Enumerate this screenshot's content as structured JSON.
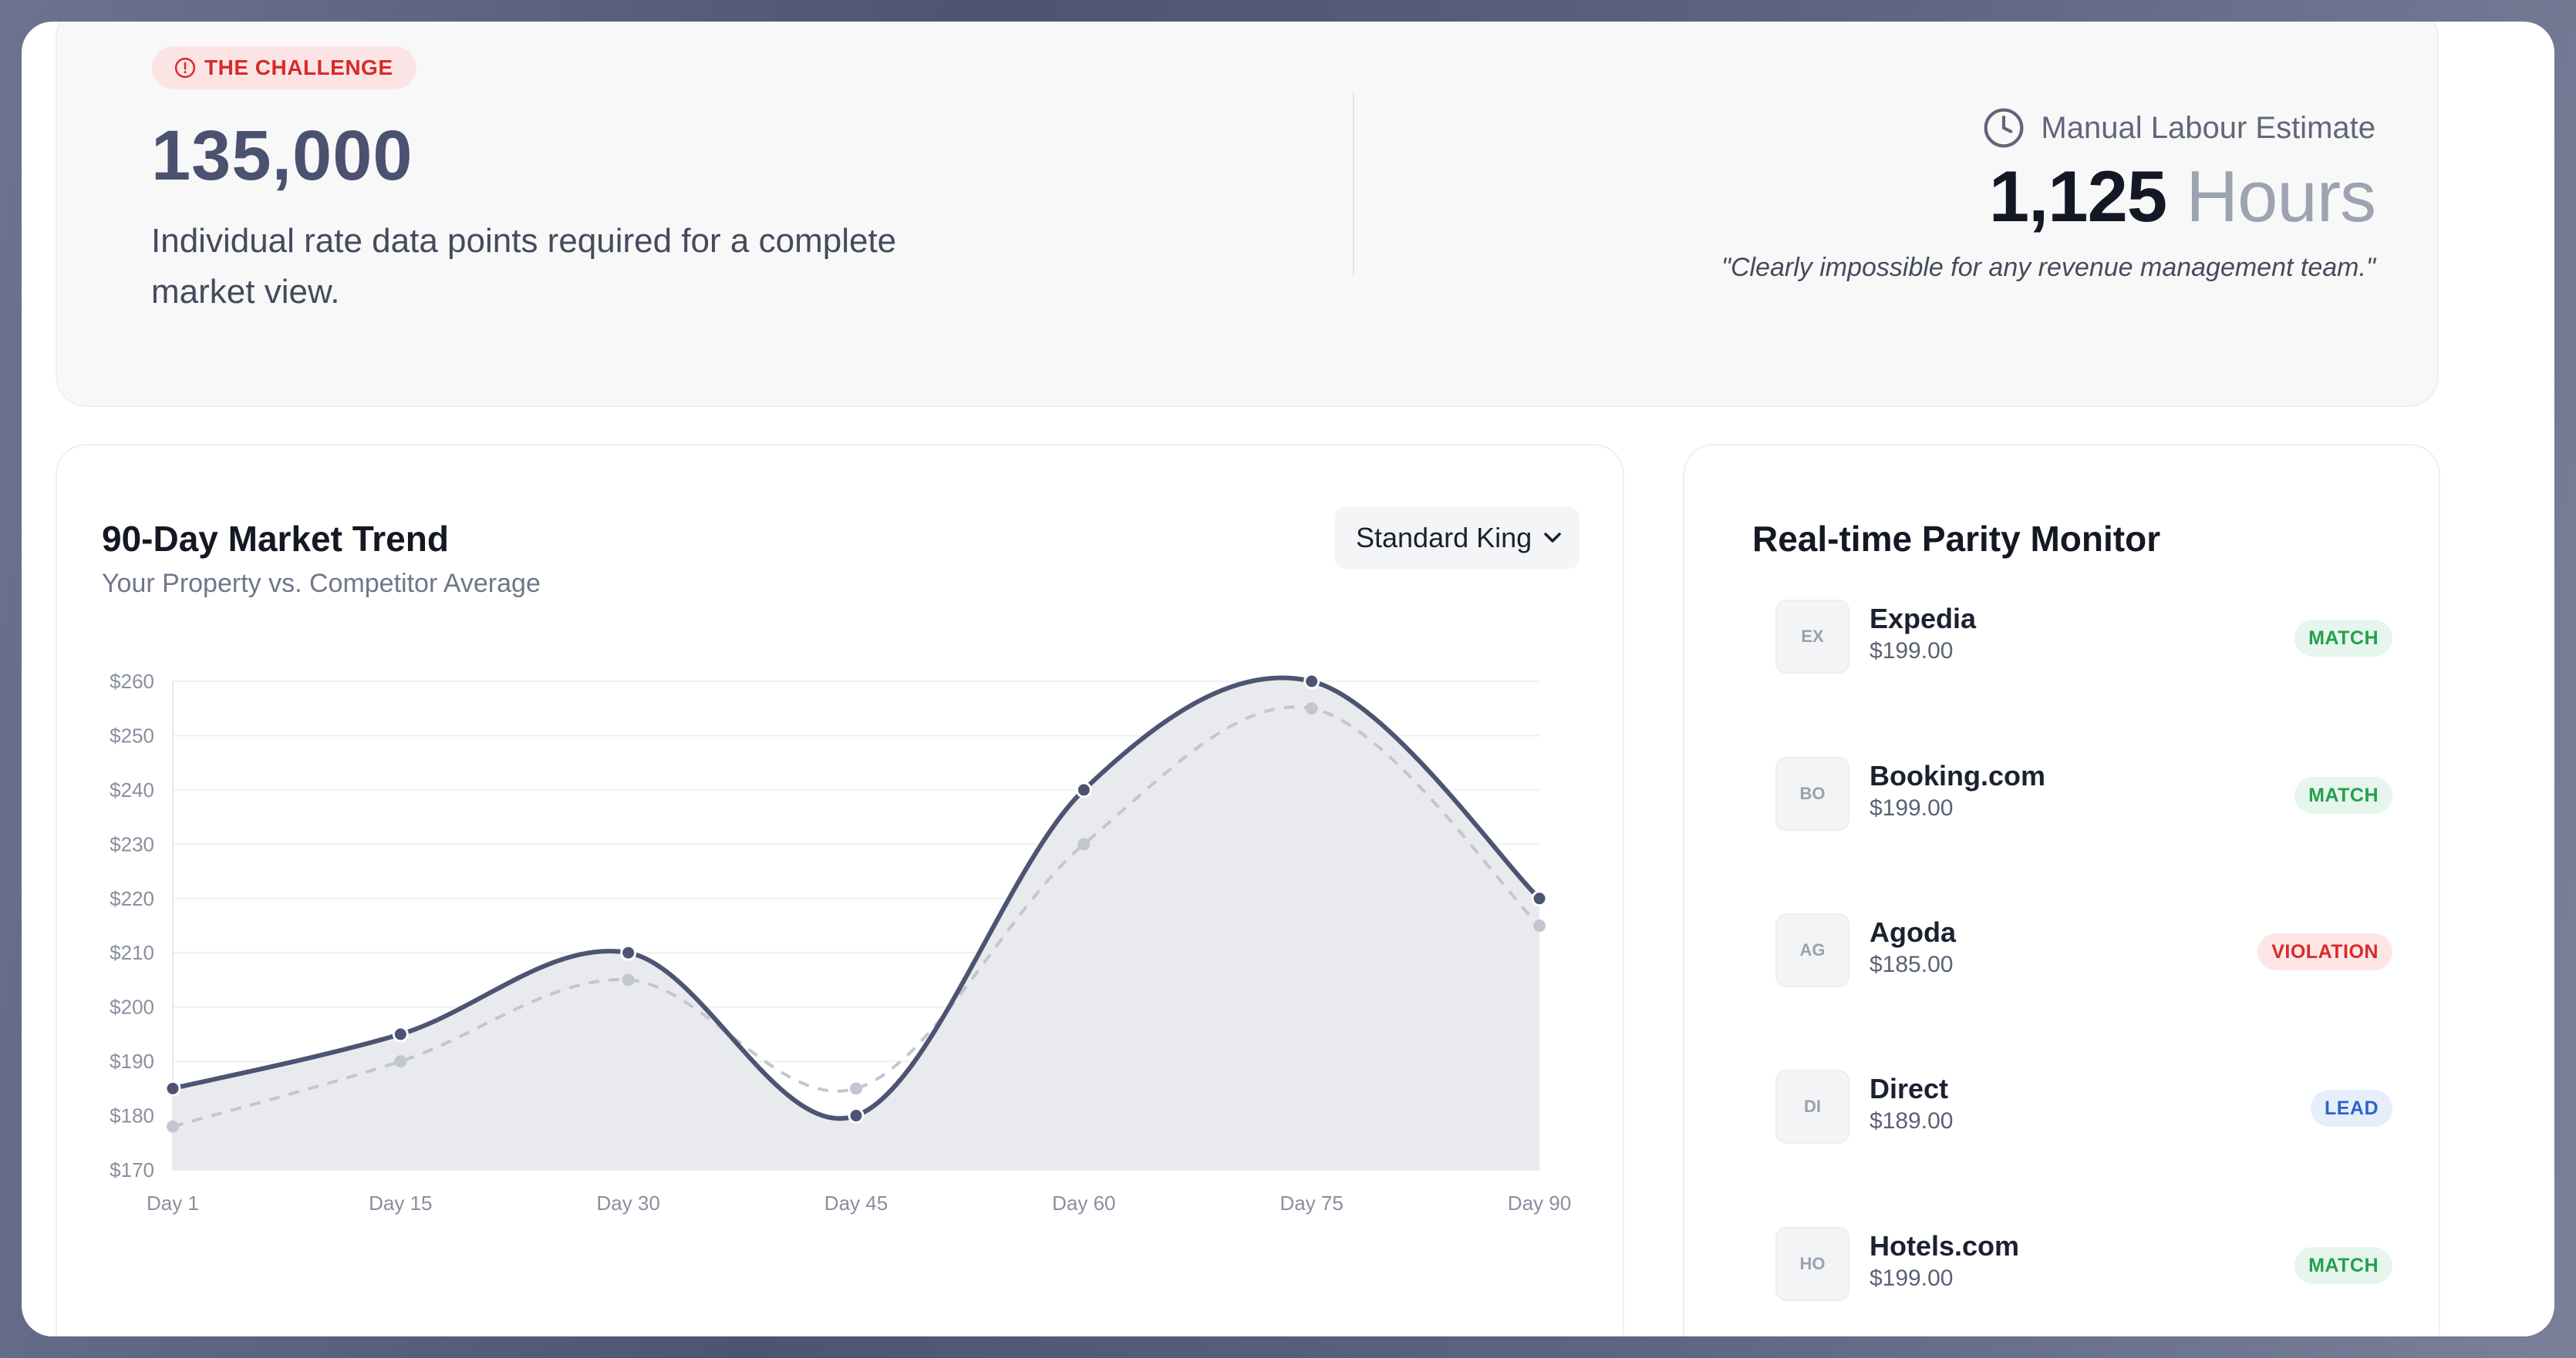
{
  "challenge": {
    "badge_label": "THE CHALLENGE",
    "headline_number": "135,000",
    "description": "Individual rate data points required for a complete market view.",
    "labour_label": "Manual Labour Estimate",
    "hours_value": "1,125",
    "hours_unit": "Hours",
    "quote": "\"Clearly impossible for any revenue management team.\""
  },
  "trend": {
    "title": "90-Day Market Trend",
    "subtitle": "Your Property vs. Competitor Average",
    "room_select": "Standard King"
  },
  "chart_data": {
    "type": "line",
    "title": "90-Day Market Trend",
    "subtitle": "Your Property vs. Competitor Average",
    "x": [
      "Day 1",
      "Day 15",
      "Day 30",
      "Day 45",
      "Day 60",
      "Day 75",
      "Day 90"
    ],
    "y_ticks": [
      "$170",
      "$180",
      "$190",
      "$200",
      "$210",
      "$220",
      "$230",
      "$240",
      "$250",
      "$260"
    ],
    "ylim": [
      170,
      260
    ],
    "grid": true,
    "series": [
      {
        "values": [
          185,
          195,
          210,
          180,
          240,
          260,
          220
        ],
        "color": "#4d5473",
        "style": "solid",
        "fill": "#e9eaee"
      },
      {
        "values": [
          178,
          190,
          205,
          185,
          230,
          255,
          215
        ],
        "color": "#c3c6d0",
        "style": "dashed"
      }
    ]
  },
  "parity": {
    "title": "Real-time Parity Monitor",
    "items": [
      {
        "abbr": "EX",
        "name": "Expedia",
        "price": "$199.00",
        "status": "MATCH",
        "kind": "match"
      },
      {
        "abbr": "BO",
        "name": "Booking.com",
        "price": "$199.00",
        "status": "MATCH",
        "kind": "match"
      },
      {
        "abbr": "AG",
        "name": "Agoda",
        "price": "$185.00",
        "status": "VIOLATION",
        "kind": "violation"
      },
      {
        "abbr": "DI",
        "name": "Direct",
        "price": "$189.00",
        "status": "LEAD",
        "kind": "lead"
      },
      {
        "abbr": "HO",
        "name": "Hotels.com",
        "price": "$199.00",
        "status": "MATCH",
        "kind": "match"
      }
    ]
  },
  "colors": {
    "accent": "#4d5473",
    "match": "#23a04d",
    "violation": "#d82a2a",
    "lead": "#2f63c8"
  }
}
